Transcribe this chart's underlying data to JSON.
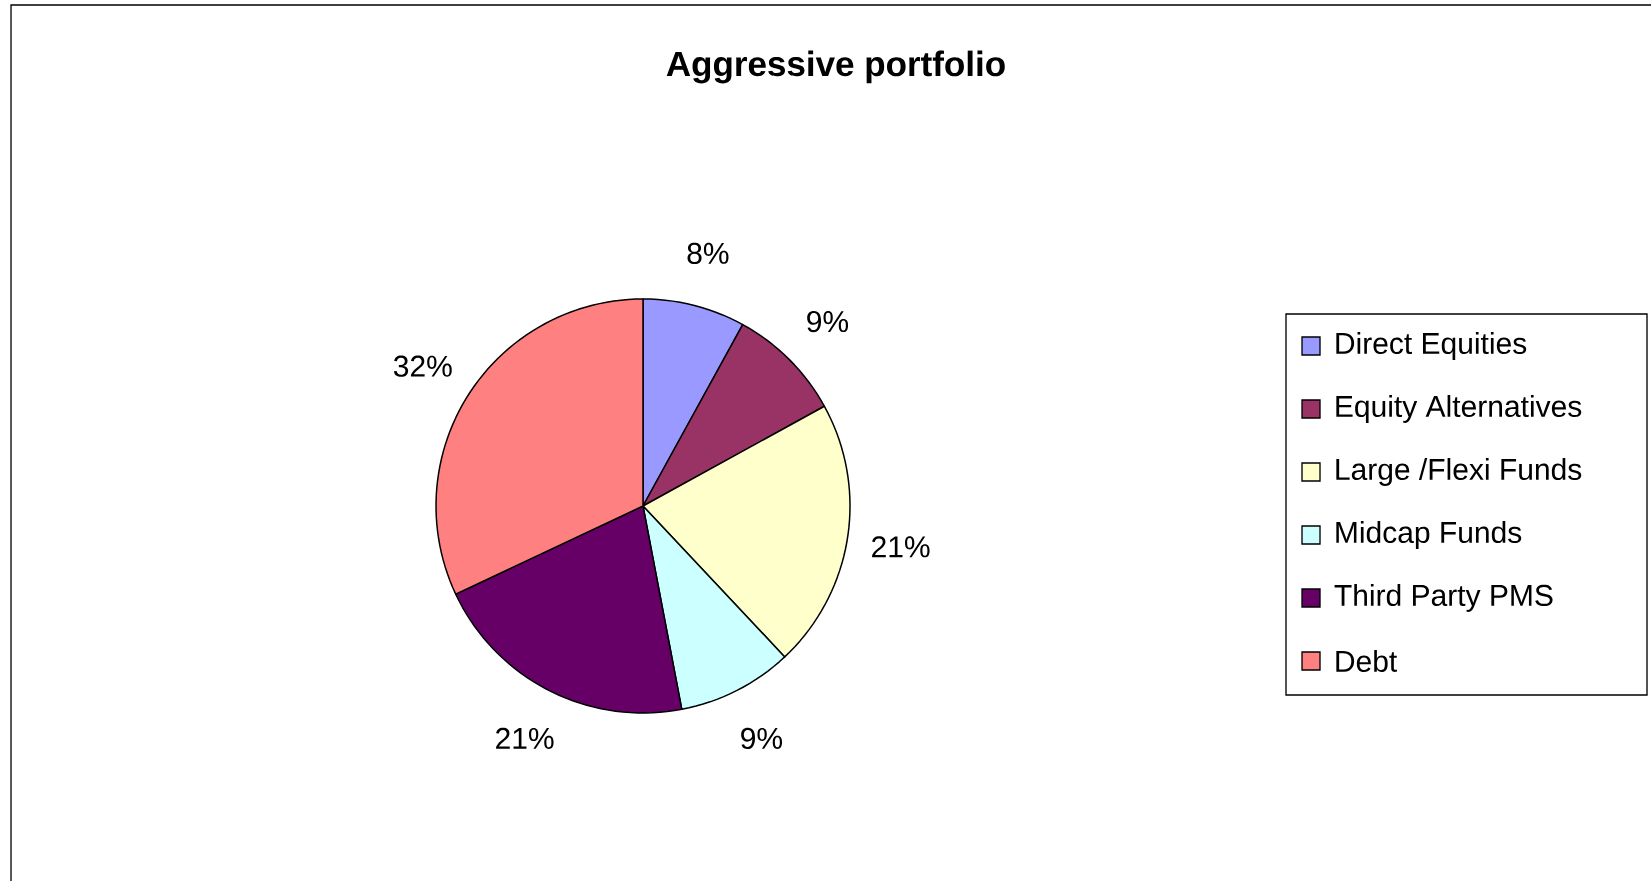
{
  "chart_data": {
    "type": "pie",
    "title": "Aggressive portfolio",
    "categories": [
      "Direct Equities",
      "Equity Alternatives",
      "Large /Flexi Funds",
      "Midcap Funds",
      "Third Party PMS",
      "Debt"
    ],
    "values": [
      8,
      9,
      21,
      9,
      21,
      32
    ],
    "colors": [
      "#9999ff",
      "#993366",
      "#ffffcc",
      "#ccffff",
      "#660066",
      "#ff8080"
    ],
    "value_labels": [
      "8%",
      "9%",
      "21%",
      "9%",
      "21%",
      "32%"
    ],
    "legend": "right"
  }
}
